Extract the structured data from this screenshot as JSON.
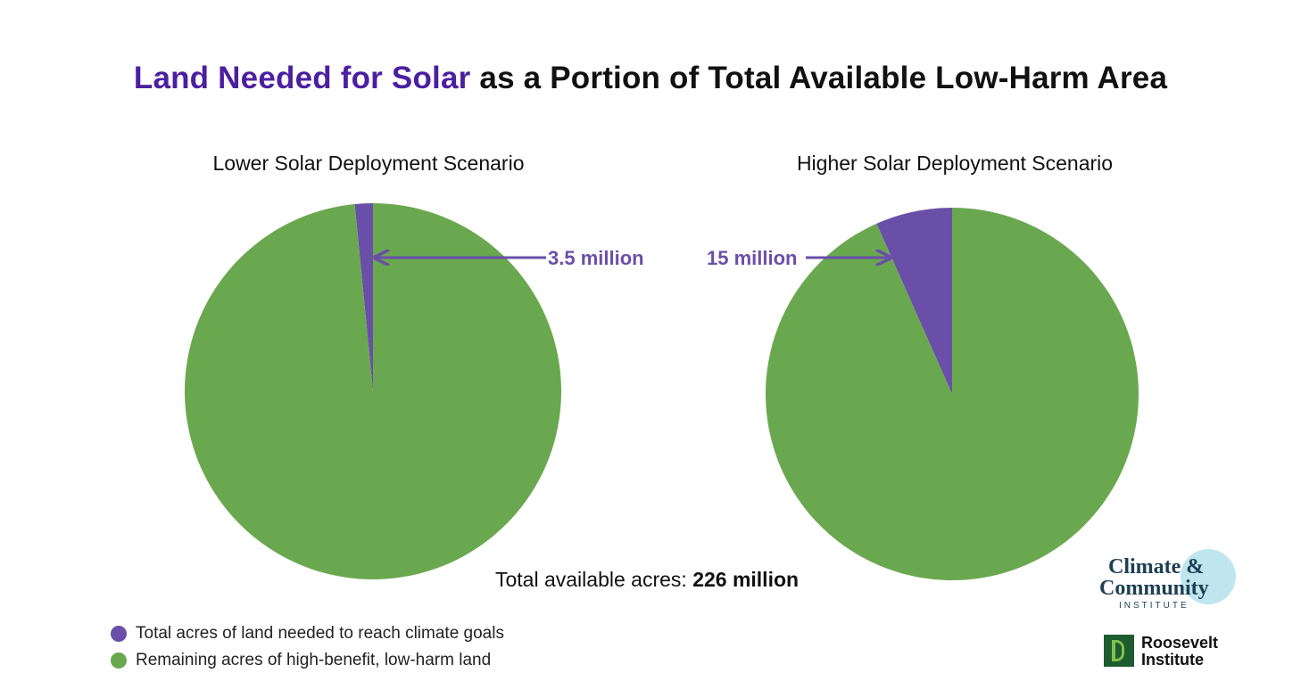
{
  "header": {
    "title_accent": "Land Needed for Solar",
    "title_rest": "as a Portion of Total Available Low-Harm Area"
  },
  "chart_data": [
    {
      "type": "pie",
      "title": "Lower Solar Deployment Scenario",
      "slices": [
        {
          "label": "Total acres of land needed to reach climate goals",
          "value": 3.5,
          "display": "3.5 million",
          "color": "#6a4fa8"
        },
        {
          "label": "Remaining acres of high-benefit, low-harm land",
          "value": 222.5,
          "color": "#6aa84f"
        }
      ]
    },
    {
      "type": "pie",
      "title": "Higher Solar Deployment Scenario",
      "slices": [
        {
          "label": "Total acres of land needed to reach climate goals",
          "value": 15,
          "display": "15 million",
          "color": "#6a4fa8"
        },
        {
          "label": "Remaining acres of high-benefit, low-harm land",
          "value": 211,
          "color": "#6aa84f"
        }
      ]
    }
  ],
  "total": {
    "prefix": "Total available acres:",
    "value": "226 million"
  },
  "legend": [
    {
      "label": "Total acres of land needed to reach climate goals",
      "color": "#6a4fa8"
    },
    {
      "label": "Remaining acres of high-benefit, low-harm land",
      "color": "#6aa84f"
    }
  ],
  "logos": {
    "cci": {
      "line1": "Climate &",
      "line2": "Community",
      "line3": "INSTITUTE"
    },
    "roosevelt": {
      "line1": "Roosevelt",
      "line2": "Institute"
    }
  }
}
